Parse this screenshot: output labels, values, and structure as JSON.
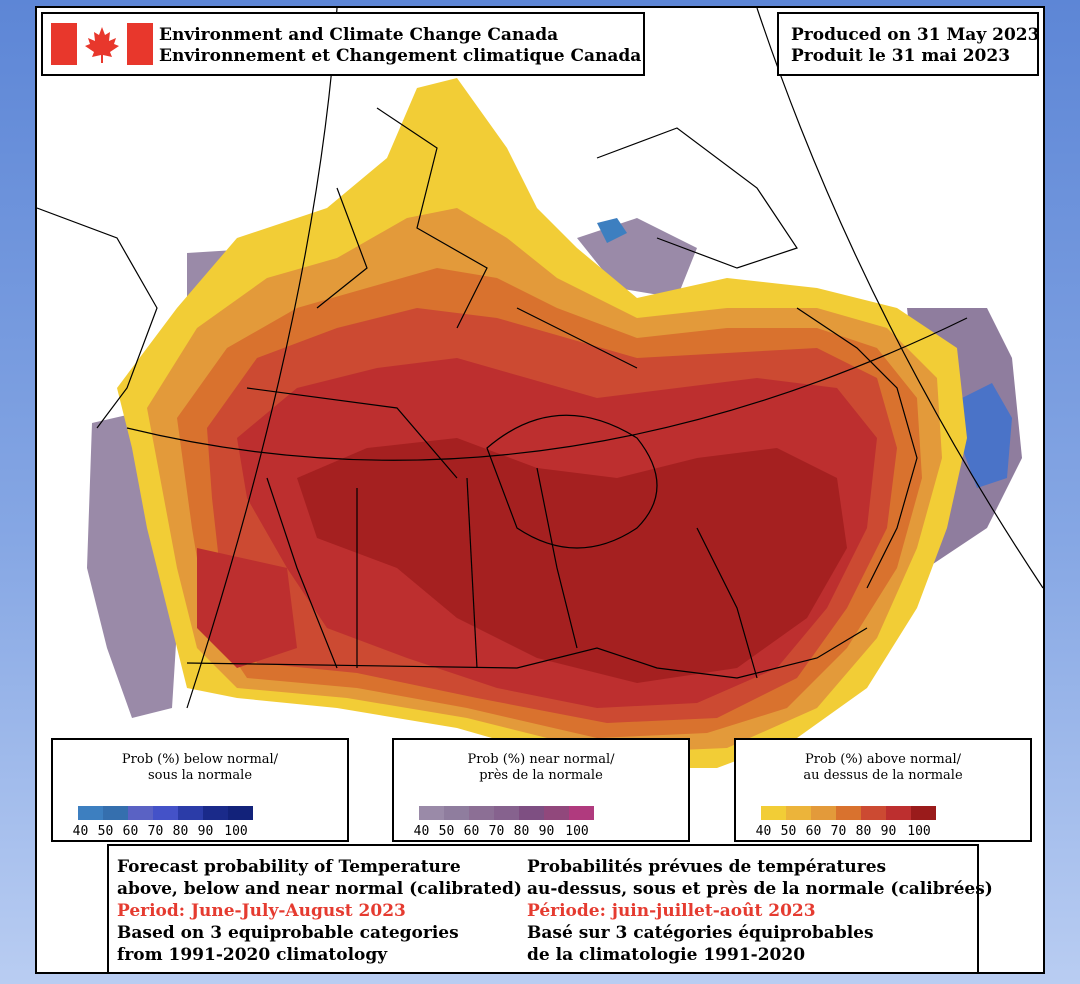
{
  "header": {
    "title_en": "Environment and Climate Change Canada",
    "title_fr": "Environnement et Changement climatique Canada",
    "produced_en": "Produced on 31 May 2023",
    "produced_fr": "Produit le 31 mai 2023"
  },
  "legends": {
    "below": {
      "line1": "Prob (%) below normal/",
      "line2": "sous la normale",
      "colors": [
        "#3d7fc0",
        "#356fae",
        "#5a62c4",
        "#4452c8",
        "#2b3ca8",
        "#1a2a8a",
        "#12227a"
      ]
    },
    "near": {
      "line1": "Prob (%) near normal/",
      "line2": "près de la normale",
      "colors": [
        "#9a8aa8",
        "#8f7d9e",
        "#8c6f95",
        "#86628e",
        "#7e4f82",
        "#91487c",
        "#b03a7e"
      ]
    },
    "above": {
      "line1": "Prob (%) above normal/",
      "line2": "au dessus de la normale",
      "colors": [
        "#f2cd36",
        "#ecb43a",
        "#e39a3a",
        "#d9722e",
        "#cc4a32",
        "#bd2f2f",
        "#9a1b1b"
      ]
    },
    "ticks": [
      "40",
      "50",
      "60",
      "70",
      "80",
      "90",
      "100"
    ]
  },
  "description": {
    "en": {
      "line1": "Forecast probability of Temperature",
      "line2": "above, below and near normal (calibrated)",
      "period": "Period: June-July-August 2023",
      "line4": "Based on 3 equiprobable categories",
      "line5": "from 1991-2020 climatology"
    },
    "fr": {
      "line1": "Probabilités prévues de températures",
      "line2": "au-dessus, sous et près de la normale (calibrées)",
      "period": "Période: juin-juillet-août 2023",
      "line4": "Basé sur 3 catégories équiprobables",
      "line5": "de la climatologie 1991-2020"
    }
  },
  "map": {
    "flag_symbol": "maple-leaf"
  }
}
